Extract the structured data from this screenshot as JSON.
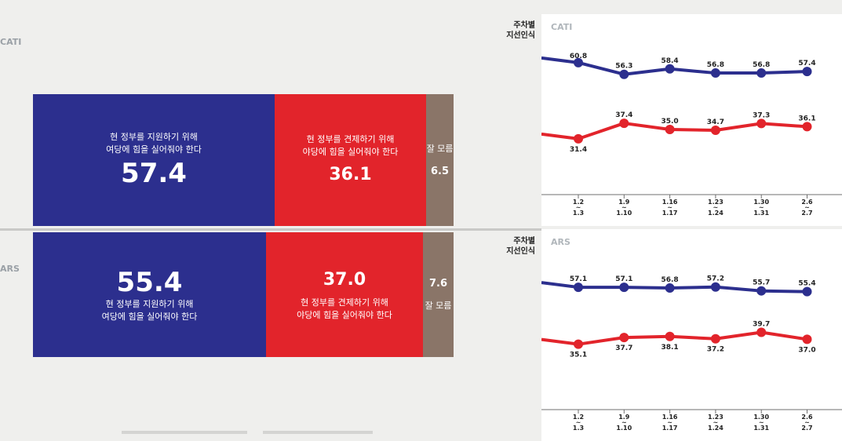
{
  "colors": {
    "support": "#2c2f8e",
    "check": "#e2242b",
    "unknown": "#8a7568"
  },
  "weekly_label_line1": "주차별",
  "weekly_label_line2": "지선인식",
  "bars": {
    "cati": {
      "method": "CATI",
      "support_caption_1": "현 정부를 지원하기 위해",
      "support_caption_2": "여당에 힘을 실어줘야 한다",
      "support_value": "57.4",
      "check_caption_1": "현 정부를 견제하기 위해",
      "check_caption_2": "야당에 힘을 실어줘야 한다",
      "check_value": "36.1",
      "unknown_label": "잘 모름",
      "unknown_value": "6.5"
    },
    "ars": {
      "method": "ARS",
      "support_caption_1": "현 정부를 지원하기 위해",
      "support_caption_2": "여당에 힘을 실어줘야 한다",
      "support_value": "55.4",
      "check_caption_1": "현 정부를 견제하기 위해",
      "check_caption_2": "야당에 힘을 실어줘야 한다",
      "check_value": "37.0",
      "unknown_label": "잘 모름",
      "unknown_value": "7.6"
    }
  },
  "chart_data": [
    {
      "type": "line",
      "title": "CATI",
      "ylabel": "주차별 지선인식",
      "categories": [
        [
          "1.2",
          "~",
          "1.3"
        ],
        [
          "1.9",
          "~",
          "1.10"
        ],
        [
          "1.16",
          "~",
          "1.17"
        ],
        [
          "1.23",
          "~",
          "1.24"
        ],
        [
          "1.30",
          "~",
          "1.31"
        ],
        [
          "2.6",
          "~",
          "2.7"
        ]
      ],
      "series": [
        {
          "name": "support",
          "color": "#2c2f8e",
          "values": [
            60.8,
            56.3,
            58.4,
            56.8,
            56.8,
            57.4
          ]
        },
        {
          "name": "check",
          "color": "#e2242b",
          "values": [
            31.4,
            37.4,
            35.0,
            34.7,
            37.3,
            36.1
          ]
        }
      ],
      "ylim": [
        25,
        65
      ]
    },
    {
      "type": "line",
      "title": "ARS",
      "ylabel": "주차별 지선인식",
      "categories": [
        [
          "1.2",
          "~",
          "1.3"
        ],
        [
          "1.9",
          "~",
          "1.10"
        ],
        [
          "1.16",
          "~",
          "1.17"
        ],
        [
          "1.23",
          "~",
          "1.24"
        ],
        [
          "1.30",
          "~",
          "1.31"
        ],
        [
          "2.6",
          "~",
          "2.7"
        ]
      ],
      "series": [
        {
          "name": "support",
          "color": "#2c2f8e",
          "values": [
            57.1,
            57.1,
            56.8,
            57.2,
            55.7,
            55.4
          ]
        },
        {
          "name": "check",
          "color": "#e2242b",
          "values": [
            35.1,
            37.7,
            38.1,
            37.2,
            39.7,
            37.0
          ]
        }
      ],
      "ylim": [
        25,
        65
      ]
    }
  ]
}
